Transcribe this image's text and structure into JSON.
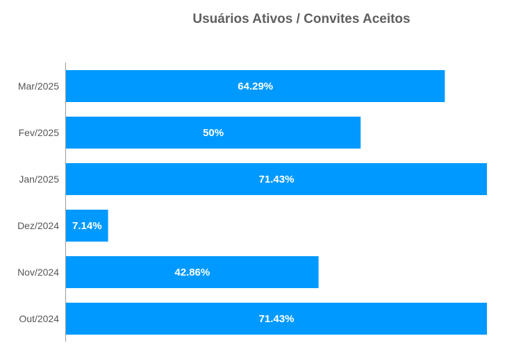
{
  "chart_data": {
    "type": "bar",
    "orientation": "horizontal",
    "title": "Usuários Ativos / Convites Aceitos",
    "categories": [
      "Mar/2025",
      "Fev/2025",
      "Jan/2025",
      "Dez/2024",
      "Nov/2024",
      "Out/2024"
    ],
    "values": [
      64.29,
      50,
      71.43,
      7.14,
      42.86,
      71.43
    ],
    "data_labels": [
      "64.29%",
      "50%",
      "71.43%",
      "7.14%",
      "42.86%",
      "71.43%"
    ],
    "xlabel": "",
    "ylabel": "",
    "xlim": [
      0,
      71.43
    ],
    "grid": false,
    "legend": "none",
    "bar_color": "#0099ff",
    "label_color": "#ffffff"
  }
}
